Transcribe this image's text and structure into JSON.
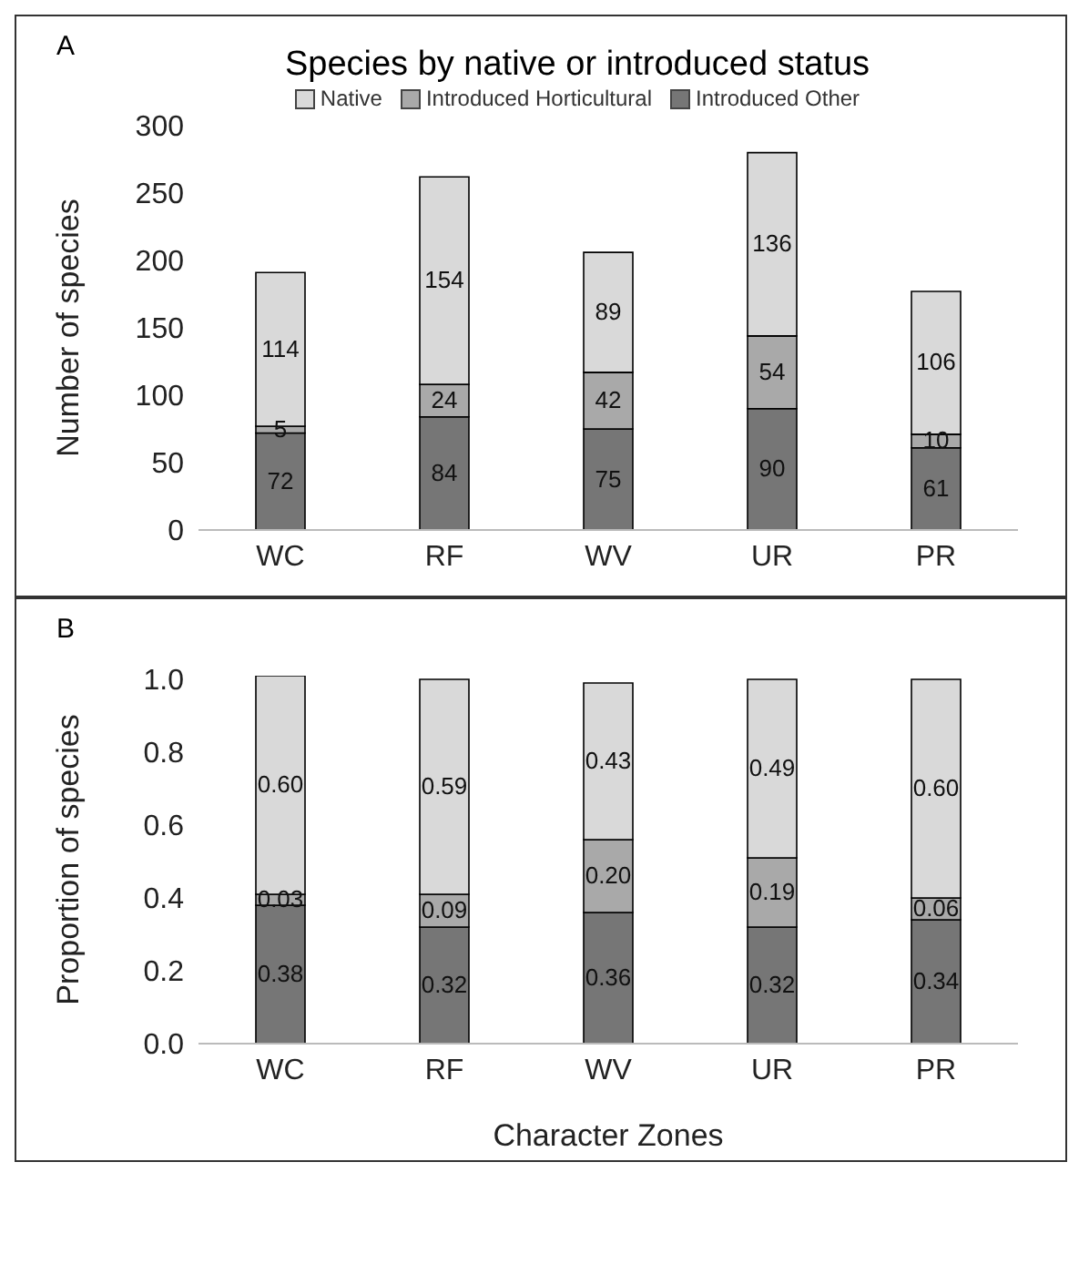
{
  "chart_data": [
    {
      "type": "bar",
      "title": "Species by native or introduced status",
      "annotations": [
        "A"
      ],
      "ylabel": "Number of species",
      "categories": [
        "WC",
        "RF",
        "WV",
        "UR",
        "PR"
      ],
      "stacked": true,
      "data_labels": true,
      "legend": "top",
      "grid": false,
      "ylim": [
        0,
        300
      ],
      "yticks": [
        0,
        50,
        100,
        150,
        200,
        250,
        300
      ],
      "series": [
        {
          "name": "Introduced Other",
          "color": "#767676",
          "values": [
            72,
            84,
            75,
            90,
            61
          ]
        },
        {
          "name": "Introduced Horticultural",
          "color": "#a9a9a9",
          "values": [
            5,
            24,
            42,
            54,
            10
          ]
        },
        {
          "name": "Native",
          "color": "#d9d9d9",
          "values": [
            114,
            154,
            89,
            136,
            106
          ]
        }
      ]
    },
    {
      "type": "bar",
      "annotations": [
        "B"
      ],
      "ylabel": "Proportion of species",
      "xlabel": "Character Zones",
      "categories": [
        "WC",
        "RF",
        "WV",
        "UR",
        "PR"
      ],
      "stacked": true,
      "grid": false,
      "ylim": [
        0,
        1.01
      ],
      "yticks": [
        {
          "value": 0,
          "label": "0.0"
        },
        {
          "value": 0.2,
          "label": "0.2"
        },
        {
          "value": 0.4,
          "label": "0.4"
        },
        {
          "value": 0.6,
          "label": "0.6"
        },
        {
          "value": 0.8,
          "label": "0.8"
        },
        {
          "value": 1,
          "label": "1.0"
        }
      ],
      "series": [
        {
          "color": "#767676",
          "values": [
            0.38,
            0.32,
            0.36,
            0.32,
            0.34
          ],
          "value_labels": [
            "0.38",
            "0.32",
            "0.36",
            "0.32",
            "0.34"
          ]
        },
        {
          "color": "#a9a9a9",
          "values": [
            0.03,
            0.09,
            0.2,
            0.19,
            0.06
          ],
          "value_labels": [
            "0.03",
            "0.09",
            "0.20",
            "0.19",
            "0.06"
          ]
        },
        {
          "color": "#d9d9d9",
          "values": [
            0.6,
            0.59,
            0.43,
            0.49,
            0.6
          ],
          "value_labels": [
            "0.60",
            "0.59",
            "0.43",
            "0.49",
            "0.60"
          ]
        }
      ]
    }
  ]
}
